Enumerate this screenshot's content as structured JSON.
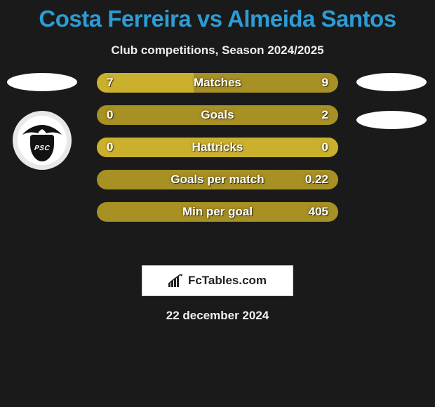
{
  "title": "Costa Ferreira vs Almeida Santos",
  "subtitle": "Club competitions, Season 2024/2025",
  "crest_text": "PSC",
  "colors": {
    "bar_base": "#a79024",
    "bar_fill": "#cbb02d",
    "title": "#2d9cd4",
    "text_light": "#eeeeee",
    "background": "#1a1a1a",
    "ellipse": "#ffffff"
  },
  "bars": [
    {
      "label": "Matches",
      "left": "7",
      "right": "9",
      "fill_pct": 40,
      "fill_round_right": false
    },
    {
      "label": "Goals",
      "left": "0",
      "right": "2",
      "fill_pct": 0,
      "fill_round_right": false
    },
    {
      "label": "Hattricks",
      "left": "0",
      "right": "0",
      "fill_pct": 100,
      "fill_round_right": true
    },
    {
      "label": "Goals per match",
      "left": "",
      "right": "0.22",
      "fill_pct": 0,
      "fill_round_right": false
    },
    {
      "label": "Min per goal",
      "left": "",
      "right": "405",
      "fill_pct": 0,
      "fill_round_right": false
    }
  ],
  "footer_logo_text": "FcTables.com",
  "date": "22 december 2024"
}
